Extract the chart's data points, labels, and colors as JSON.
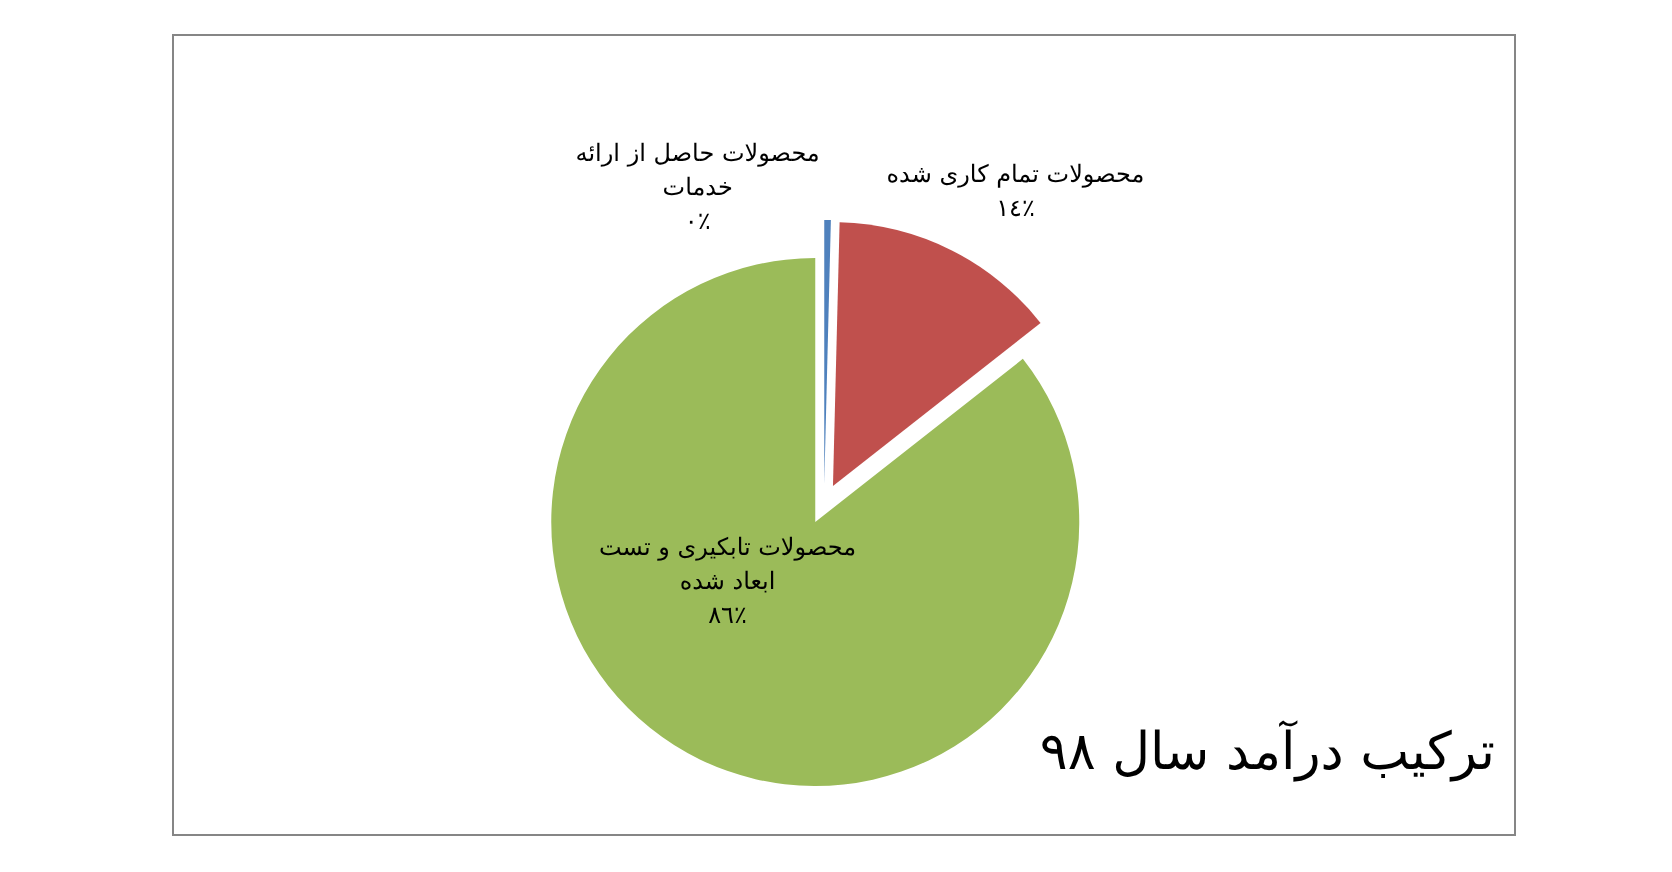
{
  "chart_data": {
    "type": "pie",
    "title": "ترکیب درآمد سال ٩٨",
    "categories": [
      "محصولات حاصل از ارائه خدمات",
      "محصولات تمام کاری شده",
      "محصولات تابکیری و تست ابعاد شده"
    ],
    "values": [
      0.4,
      14,
      85.6
    ],
    "colors": [
      "#4f81bd",
      "#c0504d",
      "#9bbb59"
    ],
    "value_labels": [
      "٠٪",
      "١٤٪",
      "٨٦٪"
    ]
  }
}
